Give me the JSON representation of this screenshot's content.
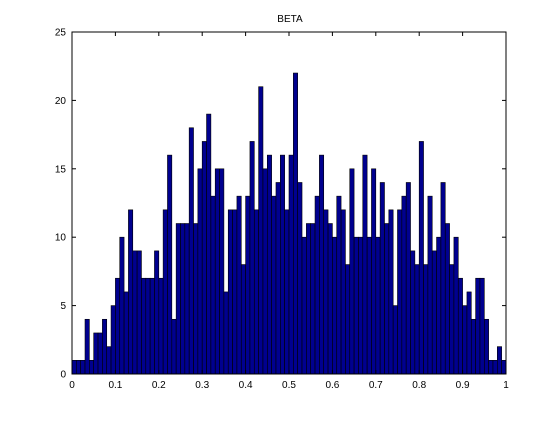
{
  "chart_data": {
    "type": "bar",
    "title": "BETA",
    "xlabel": "",
    "ylabel": "",
    "xlim": [
      0,
      1
    ],
    "ylim": [
      0,
      25
    ],
    "xticks": [
      "0",
      "0.1",
      "0.2",
      "0.3",
      "0.4",
      "0.5",
      "0.6",
      "0.7",
      "0.8",
      "0.9",
      "1"
    ],
    "xtick_values": [
      0,
      0.1,
      0.2,
      0.3,
      0.4,
      0.5,
      0.6,
      0.7,
      0.8,
      0.9,
      1
    ],
    "yticks": [
      "0",
      "5",
      "10",
      "15",
      "20",
      "25"
    ],
    "ytick_values": [
      0,
      5,
      10,
      15,
      20,
      25
    ],
    "grid": false,
    "legend": "none",
    "bar_color": "#00008f",
    "edge_color": "#000000",
    "bin_width": 0.01,
    "bin_starts": [
      0.0,
      0.01,
      0.02,
      0.03,
      0.04,
      0.05,
      0.06,
      0.07,
      0.08,
      0.09,
      0.1,
      0.11,
      0.12,
      0.13,
      0.14,
      0.15,
      0.16,
      0.17,
      0.18,
      0.19,
      0.2,
      0.21,
      0.22,
      0.23,
      0.24,
      0.25,
      0.26,
      0.27,
      0.28,
      0.29,
      0.3,
      0.31,
      0.32,
      0.33,
      0.34,
      0.35,
      0.36,
      0.37,
      0.38,
      0.39,
      0.4,
      0.41,
      0.42,
      0.43,
      0.44,
      0.45,
      0.46,
      0.47,
      0.48,
      0.49,
      0.5,
      0.51,
      0.52,
      0.53,
      0.54,
      0.55,
      0.56,
      0.57,
      0.58,
      0.59,
      0.6,
      0.61,
      0.62,
      0.63,
      0.64,
      0.65,
      0.66,
      0.67,
      0.68,
      0.69,
      0.7,
      0.71,
      0.72,
      0.73,
      0.74,
      0.75,
      0.76,
      0.77,
      0.78,
      0.79,
      0.8,
      0.81,
      0.82,
      0.83,
      0.84,
      0.85,
      0.86,
      0.87,
      0.88,
      0.89,
      0.9,
      0.91,
      0.92,
      0.93,
      0.94,
      0.95,
      0.96,
      0.97,
      0.98,
      0.99
    ],
    "values": [
      1,
      1,
      1,
      4,
      1,
      3,
      3,
      4,
      2,
      5,
      7,
      10,
      6,
      12,
      9,
      9,
      7,
      7,
      7,
      9,
      7,
      12,
      16,
      4,
      11,
      11,
      11,
      18,
      11,
      15,
      17,
      19,
      13,
      15,
      15,
      6,
      12,
      12,
      13,
      8,
      13,
      17,
      12,
      21,
      15,
      16,
      13,
      14,
      16,
      12,
      16,
      22,
      14,
      10,
      11,
      11,
      13,
      16,
      12,
      11,
      10,
      13,
      12,
      8,
      15,
      10,
      10,
      16,
      10,
      15,
      10,
      14,
      11,
      12,
      5,
      12,
      13,
      14,
      9,
      8,
      17,
      8,
      13,
      9,
      10,
      14,
      11,
      8,
      10,
      7,
      5,
      6,
      4,
      7,
      7,
      4,
      1,
      1,
      2,
      1
    ]
  }
}
